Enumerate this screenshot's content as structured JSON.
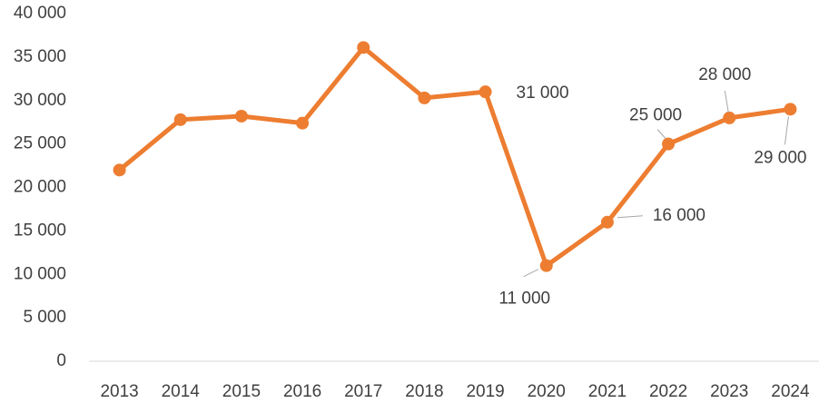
{
  "chart_data": {
    "type": "line",
    "categories": [
      "2013",
      "2014",
      "2015",
      "2016",
      "2017",
      "2018",
      "2019",
      "2020",
      "2021",
      "2022",
      "2023",
      "2024"
    ],
    "values": [
      22000,
      27800,
      28200,
      27400,
      36100,
      30300,
      31000,
      11000,
      16000,
      25000,
      28000,
      29000
    ],
    "value_labels": [
      null,
      null,
      null,
      null,
      null,
      null,
      "31 000",
      "11 000",
      "16 000",
      "25 000",
      "28 000",
      "29 000"
    ],
    "color": "#ed7d31",
    "ylim": [
      0,
      40000
    ],
    "yticks": [
      0,
      {
        "value": 5000,
        "label": "5 000"
      },
      {
        "value": 10000,
        "label": "10 000"
      },
      {
        "value": 15000,
        "label": "15 000"
      },
      {
        "value": 20000,
        "label": "20 000"
      },
      {
        "value": 25000,
        "label": "25 000"
      },
      {
        "value": 30000,
        "label": "30 000"
      },
      {
        "value": 35000,
        "label": "35 000"
      },
      {
        "value": 40000,
        "label": "40 000"
      }
    ],
    "grid": false
  }
}
